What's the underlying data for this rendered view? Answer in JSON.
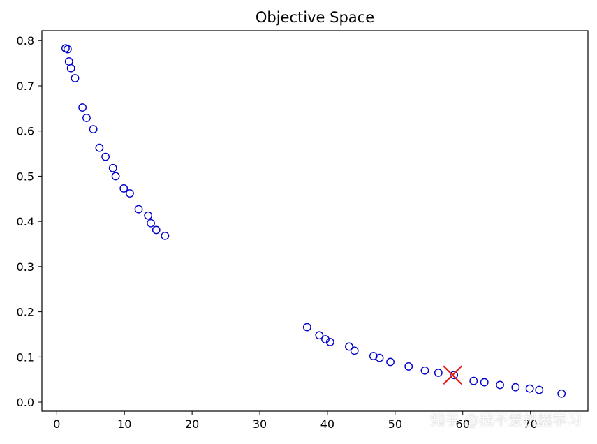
{
  "chart_data": {
    "type": "scatter",
    "title": "Objective Space",
    "xlabel": "",
    "ylabel": "",
    "xlim": [
      -2.2,
      78.5
    ],
    "ylim": [
      -0.02,
      0.822
    ],
    "xticks": [
      0,
      10,
      20,
      30,
      40,
      50,
      60,
      70
    ],
    "yticks": [
      0.0,
      0.1,
      0.2,
      0.3,
      0.4,
      0.5,
      0.6,
      0.7,
      0.8
    ],
    "grid": false,
    "legend": null,
    "series": [
      {
        "marker": "open-circle",
        "color": "#0000cc",
        "points": [
          [
            1.3,
            0.783
          ],
          [
            1.6,
            0.781
          ],
          [
            1.8,
            0.754
          ],
          [
            2.1,
            0.739
          ],
          [
            2.7,
            0.717
          ],
          [
            3.8,
            0.652
          ],
          [
            4.4,
            0.629
          ],
          [
            5.4,
            0.604
          ],
          [
            6.3,
            0.563
          ],
          [
            7.2,
            0.543
          ],
          [
            8.3,
            0.518
          ],
          [
            8.7,
            0.5
          ],
          [
            9.9,
            0.473
          ],
          [
            10.8,
            0.462
          ],
          [
            12.1,
            0.427
          ],
          [
            13.5,
            0.413
          ],
          [
            13.9,
            0.396
          ],
          [
            14.7,
            0.381
          ],
          [
            16.0,
            0.368
          ],
          [
            37.0,
            0.166
          ],
          [
            38.8,
            0.148
          ],
          [
            39.7,
            0.139
          ],
          [
            40.4,
            0.133
          ],
          [
            43.2,
            0.123
          ],
          [
            44.0,
            0.114
          ],
          [
            46.8,
            0.102
          ],
          [
            47.7,
            0.098
          ],
          [
            49.3,
            0.089
          ],
          [
            52.0,
            0.079
          ],
          [
            54.4,
            0.07
          ],
          [
            56.4,
            0.065
          ],
          [
            58.7,
            0.06
          ],
          [
            61.6,
            0.047
          ],
          [
            63.2,
            0.044
          ],
          [
            65.5,
            0.038
          ],
          [
            67.8,
            0.033
          ],
          [
            69.9,
            0.03
          ],
          [
            71.3,
            0.027
          ],
          [
            74.6,
            0.019
          ]
        ]
      },
      {
        "marker": "x",
        "color": "#e41a1c",
        "points": [
          [
            58.5,
            0.06
          ]
        ]
      }
    ]
  },
  "watermark": "知乎 @我不爱机器学习"
}
